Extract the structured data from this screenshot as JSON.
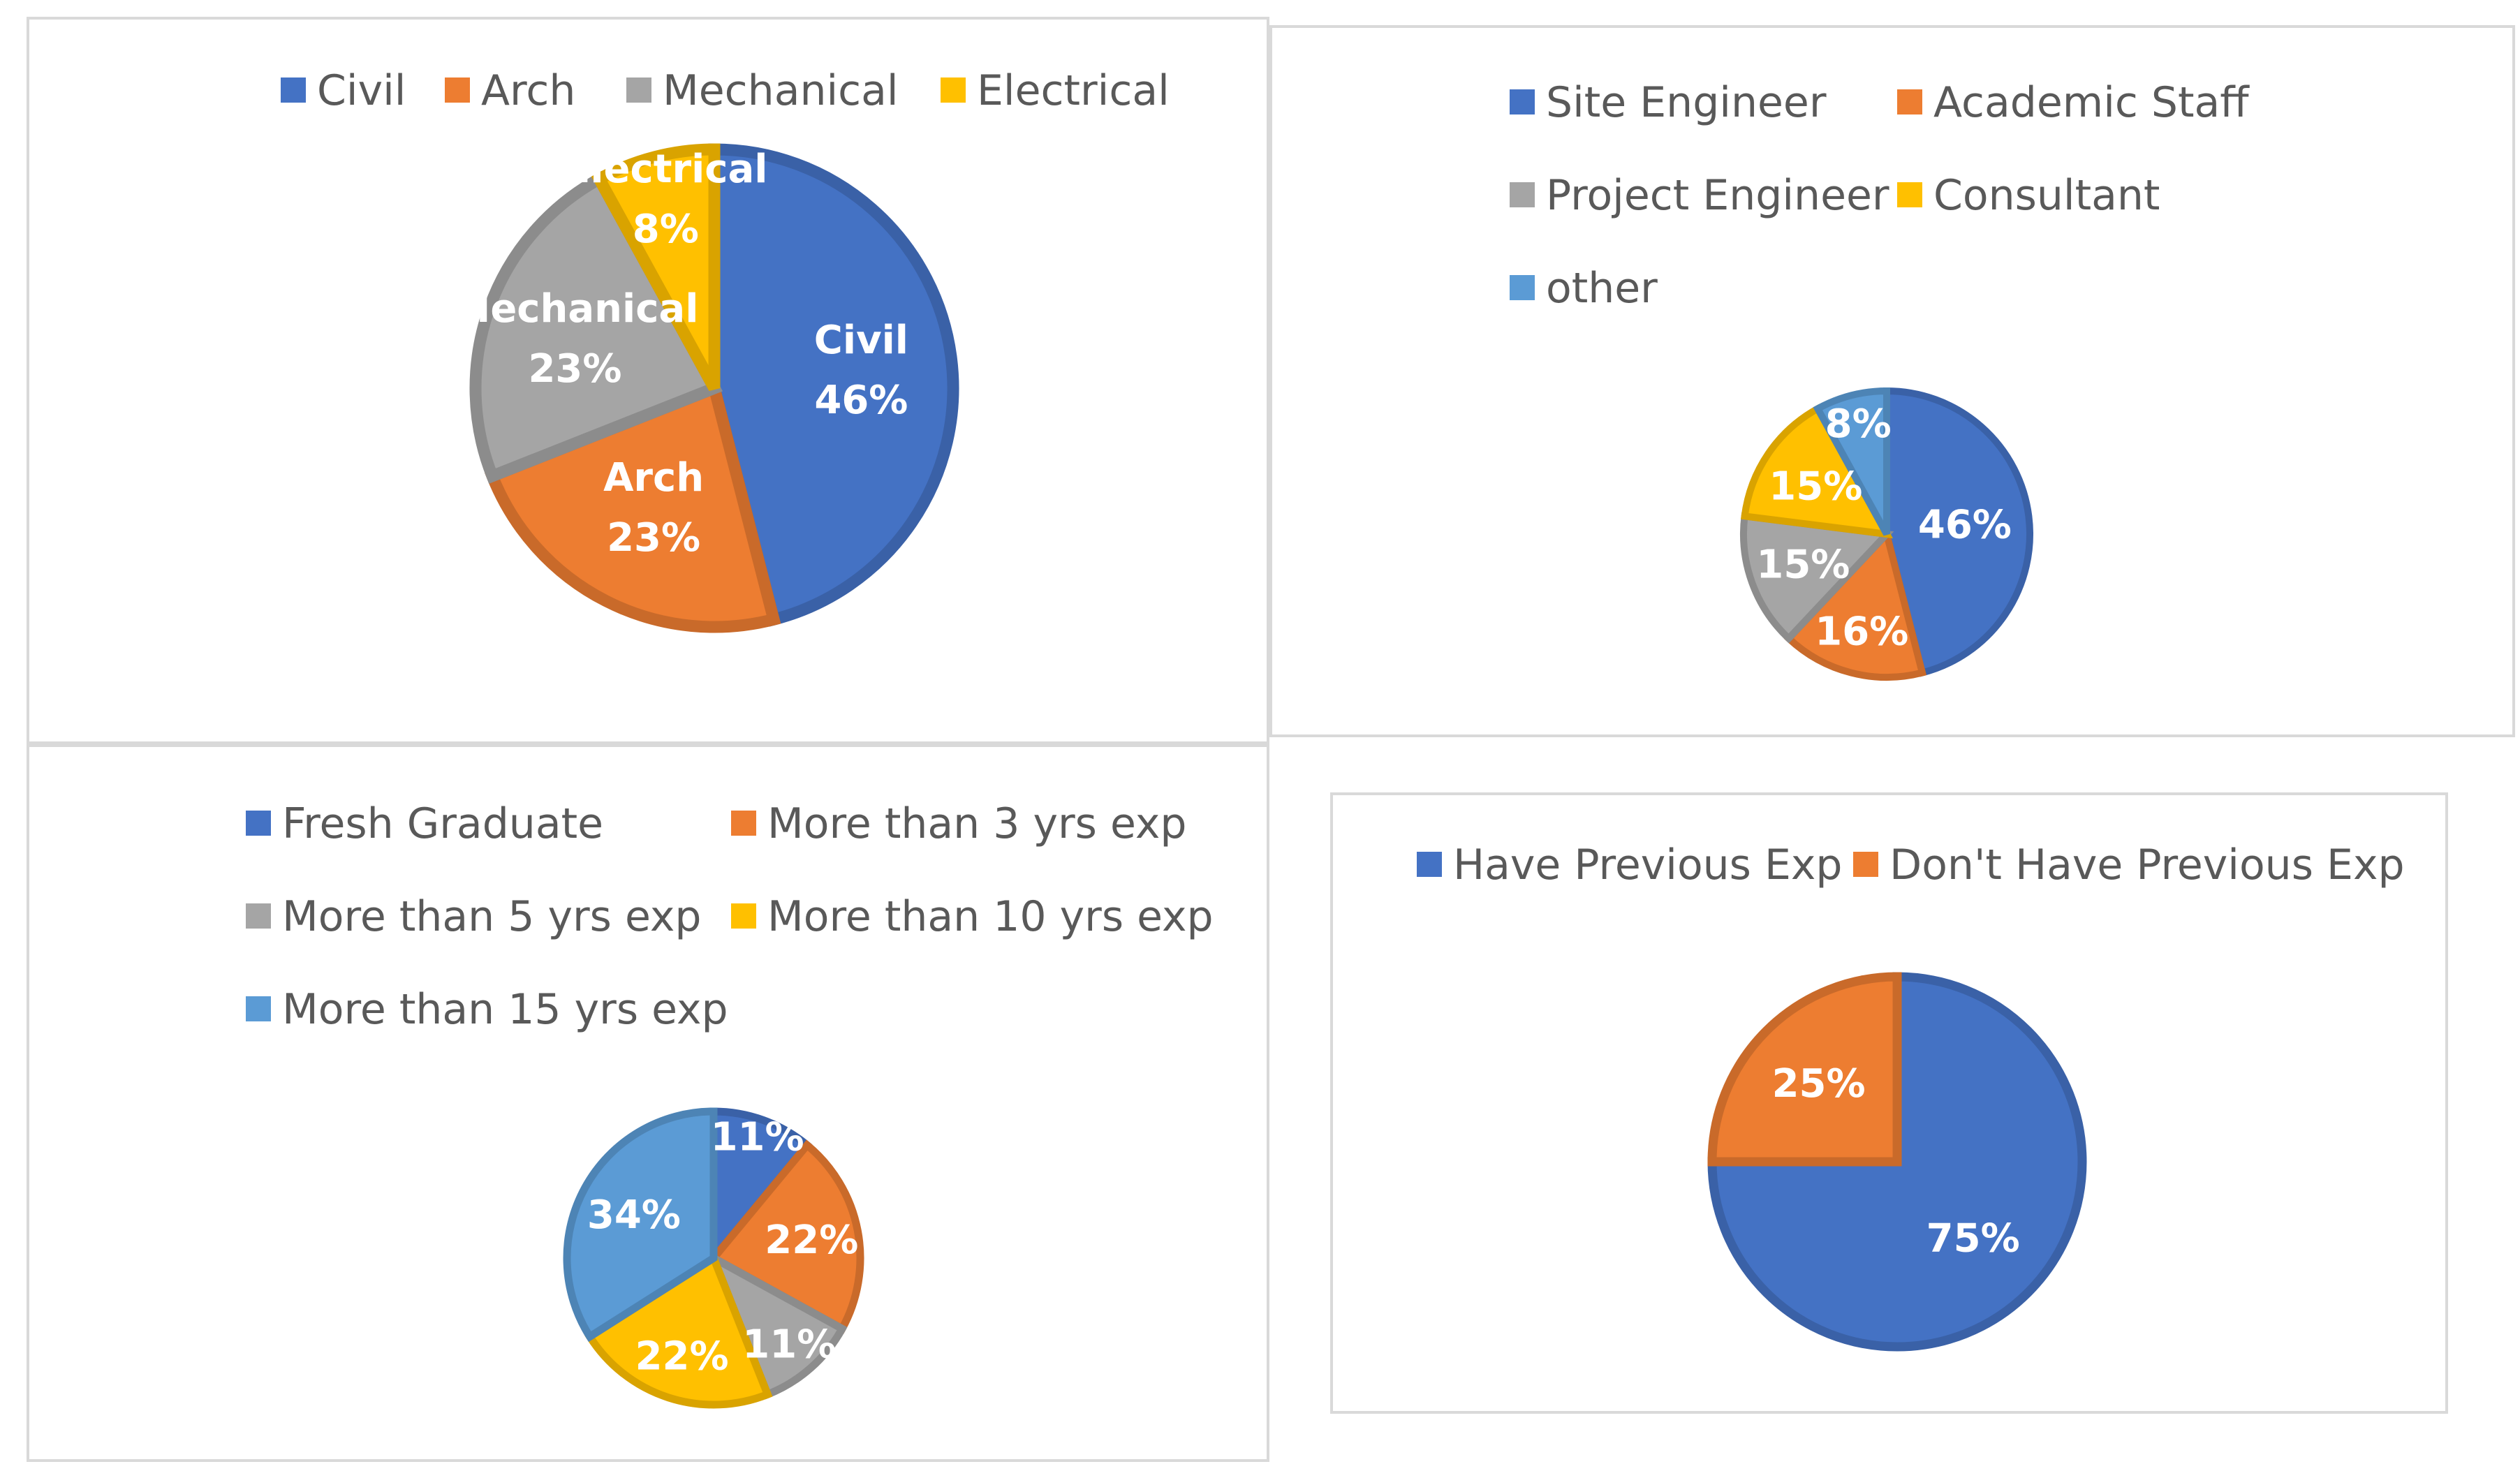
{
  "chart_data": [
    {
      "type": "pie",
      "title": "",
      "categories": [
        "Civil",
        "Arch",
        "Mechanical",
        "Electrical"
      ],
      "values": [
        46,
        23,
        23,
        8
      ],
      "labels": [
        [
          "Civil",
          "46%"
        ],
        [
          "Arch",
          "23%"
        ],
        [
          "Mechanical",
          "23%"
        ],
        [
          "Electrical",
          "8%"
        ]
      ],
      "colors": [
        "#4472c4",
        "#ed7d31",
        "#a5a5a5",
        "#ffc000"
      ],
      "legend_position": "top"
    },
    {
      "type": "pie",
      "title": "",
      "categories": [
        "Site Engineer",
        "Academic Staff",
        "Project Engineer",
        "Consultant",
        "other"
      ],
      "values": [
        46,
        16,
        15,
        15,
        8
      ],
      "labels": [
        [
          "46%"
        ],
        [
          "16%"
        ],
        [
          "15%"
        ],
        [
          "15%"
        ],
        [
          "8%"
        ]
      ],
      "colors": [
        "#4472c4",
        "#ed7d31",
        "#a5a5a5",
        "#ffc000",
        "#5b9bd5"
      ],
      "legend_position": "top"
    },
    {
      "type": "pie",
      "title": "",
      "categories": [
        "Fresh Graduate",
        "More than 3 yrs exp",
        "More than 5 yrs exp",
        "More than 10 yrs exp",
        "More than 15 yrs exp"
      ],
      "values": [
        11,
        22,
        11,
        22,
        34
      ],
      "labels": [
        [
          "11%"
        ],
        [
          "22%"
        ],
        [
          "11%"
        ],
        [
          "22%"
        ],
        [
          "34%"
        ]
      ],
      "colors": [
        "#4472c4",
        "#ed7d31",
        "#a5a5a5",
        "#ffc000",
        "#5b9bd5"
      ],
      "legend_position": "top"
    },
    {
      "type": "pie",
      "title": "",
      "categories": [
        "Have Previous Exp",
        "Don't Have Previous Exp"
      ],
      "values": [
        75,
        25
      ],
      "labels": [
        [
          "75%"
        ],
        [
          "25%"
        ]
      ],
      "colors": [
        "#4472c4",
        "#ed7d31"
      ],
      "legend_position": "top"
    }
  ]
}
